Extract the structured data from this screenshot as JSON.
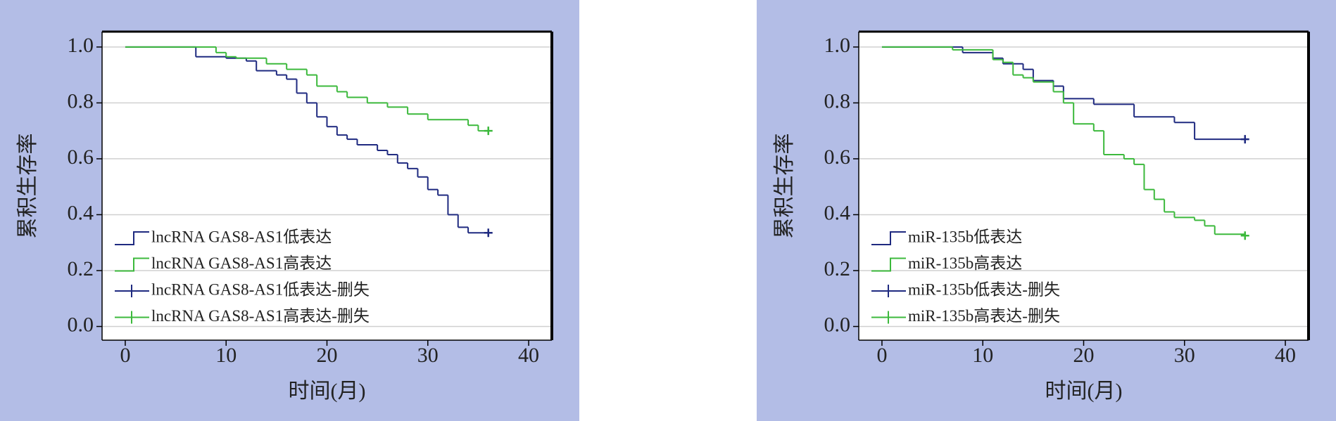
{
  "chart_data": [
    {
      "type": "step",
      "xlabel": "时间(月)",
      "ylabel": "累积生存率",
      "xlim": [
        -2.3,
        42.3
      ],
      "ylim": [
        -0.049,
        1.055
      ],
      "xticks": [
        0,
        10,
        20,
        30,
        40
      ],
      "yticks": [
        {
          "value": 0,
          "label": "0.0"
        },
        {
          "value": 0.2,
          "label": "0.2"
        },
        {
          "value": 0.4,
          "label": "0.4"
        },
        {
          "value": 0.6,
          "label": "0.6"
        },
        {
          "value": 0.8,
          "label": "0.8"
        },
        {
          "value": 1,
          "label": "1.0"
        }
      ],
      "grid": true,
      "series": [
        {
          "name": "lncRNA GAS8-AS1低表达",
          "color": "#1f2a80",
          "marker": "step",
          "x": [
            0,
            7,
            10,
            12,
            13,
            15,
            16,
            17,
            18,
            19,
            20,
            21,
            22,
            23,
            25,
            26,
            27,
            28,
            29,
            30,
            31,
            32,
            33,
            34,
            36
          ],
          "values": [
            1.0,
            0.965,
            0.96,
            0.95,
            0.915,
            0.9,
            0.885,
            0.835,
            0.8,
            0.75,
            0.715,
            0.685,
            0.67,
            0.65,
            0.63,
            0.615,
            0.585,
            0.565,
            0.535,
            0.49,
            0.47,
            0.4,
            0.355,
            0.335,
            0.335
          ]
        },
        {
          "name": "lncRNA GAS8-AS1高表达",
          "color": "#3cb93c",
          "marker": "step",
          "x": [
            0,
            9,
            10,
            11,
            14,
            16,
            18,
            19,
            21,
            22,
            24,
            26,
            28,
            30,
            34,
            35,
            36
          ],
          "values": [
            1.0,
            0.98,
            0.965,
            0.96,
            0.94,
            0.92,
            0.9,
            0.86,
            0.84,
            0.82,
            0.8,
            0.785,
            0.76,
            0.74,
            0.72,
            0.7,
            0.7
          ]
        },
        {
          "name": "lncRNA GAS8-AS1低表达-删失",
          "color": "#1f2a80",
          "marker": "+",
          "x": [
            36
          ],
          "values": [
            0.335
          ]
        },
        {
          "name": "lncRNA GAS8-AS1高表达-删失",
          "color": "#3cb93c",
          "marker": "+",
          "x": [
            36
          ],
          "values": [
            0.7
          ]
        }
      ]
    },
    {
      "type": "step",
      "xlabel": "时间(月)",
      "ylabel": "累积生存率",
      "xlim": [
        -2.3,
        42.3
      ],
      "ylim": [
        -0.049,
        1.055
      ],
      "xticks": [
        0,
        10,
        20,
        30,
        40
      ],
      "yticks": [
        {
          "value": 0,
          "label": "0.0"
        },
        {
          "value": 0.2,
          "label": "0.2"
        },
        {
          "value": 0.4,
          "label": "0.4"
        },
        {
          "value": 0.6,
          "label": "0.6"
        },
        {
          "value": 0.8,
          "label": "0.8"
        },
        {
          "value": 1,
          "label": "1.0"
        }
      ],
      "grid": true,
      "series": [
        {
          "name": "miR-135b低表达",
          "color": "#1f2a80",
          "marker": "step",
          "x": [
            0,
            8,
            11,
            12,
            14,
            15,
            17,
            18,
            21,
            25,
            29,
            31,
            36
          ],
          "values": [
            1.0,
            0.98,
            0.96,
            0.94,
            0.92,
            0.88,
            0.86,
            0.815,
            0.795,
            0.75,
            0.73,
            0.67,
            0.67
          ]
        },
        {
          "name": "miR-135b高表达",
          "color": "#3cb93c",
          "marker": "step",
          "x": [
            0,
            7,
            11,
            12,
            13,
            14,
            15,
            17,
            18,
            19,
            21,
            22,
            24,
            25,
            26,
            27,
            28,
            29,
            31,
            32,
            33,
            36
          ],
          "values": [
            1.0,
            0.99,
            0.955,
            0.945,
            0.9,
            0.89,
            0.875,
            0.84,
            0.8,
            0.725,
            0.7,
            0.615,
            0.6,
            0.58,
            0.49,
            0.455,
            0.41,
            0.39,
            0.38,
            0.36,
            0.33,
            0.325
          ]
        },
        {
          "name": "miR-135b低表达-删失",
          "color": "#1f2a80",
          "marker": "+",
          "x": [
            36
          ],
          "values": [
            0.67
          ]
        },
        {
          "name": "miR-135b高表达-删失",
          "color": "#3cb93c",
          "marker": "+",
          "x": [
            36
          ],
          "values": [
            0.325
          ]
        }
      ]
    }
  ]
}
